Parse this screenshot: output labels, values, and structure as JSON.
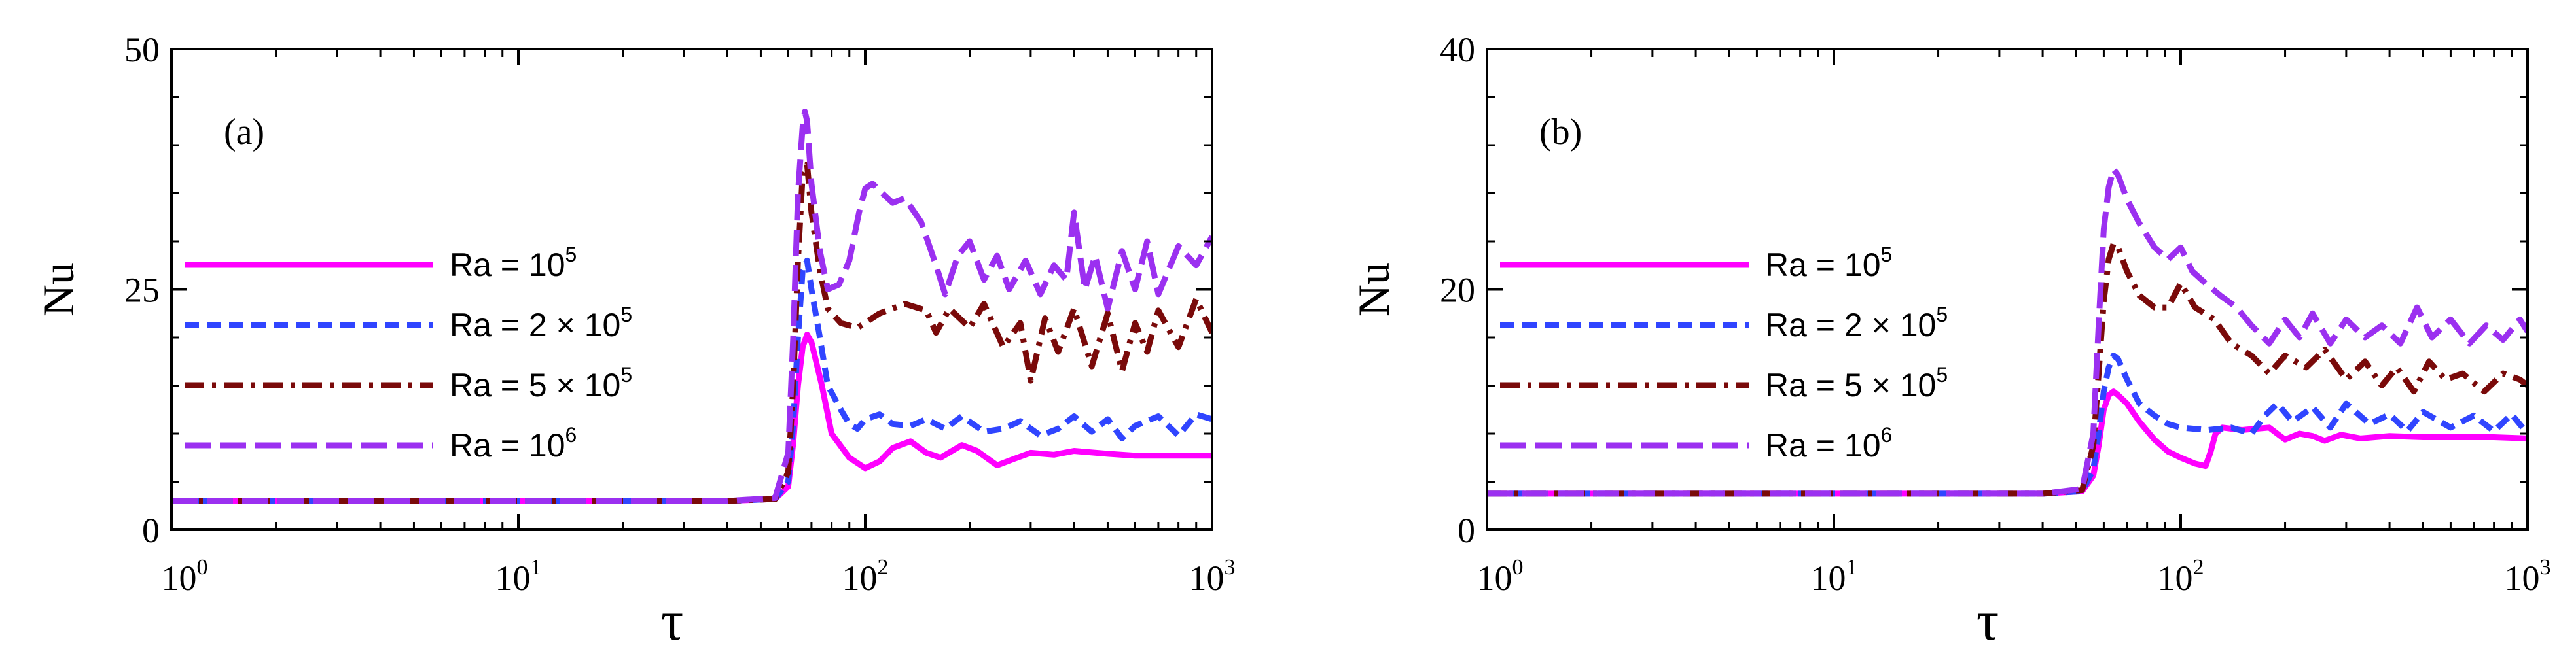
{
  "chart_data": [
    {
      "type": "line",
      "panel_label": "(a)",
      "xscale": "log",
      "xlim": [
        1,
        1000
      ],
      "ylim": [
        0,
        50
      ],
      "xlabel": "τ",
      "ylabel": "Nu",
      "yticks": [
        "0",
        "25",
        "50"
      ],
      "xticks": [
        {
          "base": "10",
          "exp": "0"
        },
        {
          "base": "10",
          "exp": "1"
        },
        {
          "base": "10",
          "exp": "2"
        },
        {
          "base": "10",
          "exp": "3"
        }
      ],
      "legend_position": "left",
      "series": [
        {
          "name": "Ra = 10^5",
          "label_base": "Ra = 10",
          "label_exp": "5",
          "color": "#ff00ff",
          "style": "solid",
          "x": [
            1,
            10,
            40,
            55,
            60,
            62,
            64,
            66,
            68,
            70,
            75,
            80,
            90,
            100,
            110,
            120,
            135,
            150,
            165,
            190,
            210,
            240,
            270,
            300,
            350,
            400,
            500,
            600,
            800,
            1000
          ],
          "y": [
            3,
            3,
            3,
            3.2,
            4.5,
            9,
            15,
            19,
            20.3,
            19.5,
            15,
            10,
            7.5,
            6.4,
            7.1,
            8.5,
            9.2,
            8.0,
            7.5,
            8.8,
            8.2,
            6.7,
            7.4,
            8.0,
            7.8,
            8.2,
            7.9,
            7.7,
            7.7,
            7.7
          ]
        },
        {
          "name": "Ra = 2 × 10^5",
          "label_base": "Ra = 2 × 10",
          "label_exp": "5",
          "color": "#3045ff",
          "style": "dash",
          "x": [
            1,
            10,
            40,
            55,
            60,
            62,
            64,
            66,
            68,
            70,
            74,
            78,
            85,
            90,
            95,
            100,
            110,
            120,
            135,
            150,
            170,
            190,
            220,
            250,
            280,
            320,
            360,
            400,
            450,
            500,
            550,
            600,
            700,
            800,
            900,
            1000
          ],
          "y": [
            3,
            3,
            3,
            3.2,
            5,
            11,
            20,
            27,
            28,
            25,
            20,
            15,
            12.5,
            11,
            10.5,
            11.5,
            12,
            11,
            10.8,
            11.5,
            10.5,
            11.8,
            10.2,
            10.5,
            11.3,
            9.8,
            10.5,
            11.8,
            10.2,
            11.5,
            9.5,
            10.8,
            11.8,
            9.8,
            12,
            11.5
          ]
        },
        {
          "name": "Ra = 5 × 10^5",
          "label_base": "Ra = 5 × 10",
          "label_exp": "5",
          "color": "#7a0a0a",
          "style": "dashdot",
          "x": [
            1,
            10,
            40,
            55,
            60,
            62,
            64,
            66,
            68,
            70,
            74,
            78,
            85,
            95,
            110,
            130,
            150,
            160,
            175,
            200,
            220,
            250,
            280,
            300,
            330,
            360,
            400,
            450,
            500,
            550,
            600,
            650,
            700,
            800,
            900,
            1000
          ],
          "y": [
            3,
            3,
            3,
            3.2,
            6,
            15,
            28,
            37,
            38,
            33,
            27,
            23,
            21.5,
            21,
            22.5,
            23.5,
            22.8,
            20.5,
            23,
            21,
            23.5,
            19,
            21.5,
            15.5,
            22,
            18.5,
            23,
            17,
            22.5,
            16.5,
            21.5,
            18.5,
            22.8,
            19,
            24,
            20.5
          ]
        },
        {
          "name": "Ra = 10^6",
          "label_base": "Ra = 10",
          "label_exp": "6",
          "color": "#9b30f0",
          "style": "longdash",
          "x": [
            1,
            10,
            40,
            55,
            60,
            62,
            64,
            66,
            67,
            68,
            70,
            74,
            78,
            84,
            90,
            96,
            100,
            105,
            112,
            120,
            130,
            145,
            160,
            170,
            185,
            200,
            220,
            240,
            260,
            290,
            320,
            350,
            380,
            400,
            430,
            460,
            500,
            550,
            600,
            650,
            700,
            800,
            900,
            1000
          ],
          "y": [
            3,
            3,
            3,
            3.3,
            8,
            20,
            35,
            42,
            43.5,
            42.5,
            36,
            29,
            25,
            25.5,
            28,
            33,
            35.5,
            36,
            35,
            34,
            34.5,
            32,
            27.5,
            24.5,
            28.5,
            30,
            26,
            28.5,
            25,
            28,
            24.5,
            27.5,
            26,
            33,
            25,
            28.5,
            23,
            29,
            25,
            30,
            24.5,
            29.5,
            27.5,
            30.5
          ]
        }
      ]
    },
    {
      "type": "line",
      "panel_label": "(b)",
      "xscale": "log",
      "xlim": [
        1,
        1000
      ],
      "ylim": [
        0,
        40
      ],
      "xlabel": "τ",
      "ylabel": "Nu",
      "yticks": [
        "0",
        "20",
        "40"
      ],
      "xticks": [
        {
          "base": "10",
          "exp": "0"
        },
        {
          "base": "10",
          "exp": "1"
        },
        {
          "base": "10",
          "exp": "2"
        },
        {
          "base": "10",
          "exp": "3"
        }
      ],
      "legend_position": "left",
      "series": [
        {
          "name": "Ra = 10^5",
          "label_base": "Ra = 10",
          "label_exp": "5",
          "color": "#ff00ff",
          "style": "solid",
          "x": [
            1,
            10,
            40,
            52,
            56,
            58,
            60,
            62,
            64,
            66,
            70,
            76,
            84,
            92,
            100,
            110,
            118,
            122,
            126,
            132,
            150,
            180,
            200,
            220,
            240,
            260,
            290,
            330,
            400,
            500,
            600,
            800,
            1000
          ],
          "y": [
            3,
            3,
            3,
            3.2,
            4.5,
            7,
            10,
            11.2,
            11.5,
            11.2,
            10.5,
            9,
            7.5,
            6.5,
            6.0,
            5.5,
            5.3,
            6.5,
            8.0,
            8.5,
            8.3,
            8.5,
            7.5,
            8.0,
            7.8,
            7.4,
            7.9,
            7.6,
            7.8,
            7.7,
            7.7,
            7.7,
            7.6
          ]
        },
        {
          "name": "Ra = 2 × 10^5",
          "label_base": "Ra = 2 × 10",
          "label_exp": "5",
          "color": "#3045ff",
          "style": "dash",
          "x": [
            1,
            10,
            40,
            52,
            56,
            58,
            60,
            62,
            64,
            66,
            70,
            76,
            84,
            92,
            100,
            120,
            140,
            160,
            175,
            190,
            210,
            240,
            270,
            300,
            350,
            400,
            450,
            500,
            600,
            700,
            800,
            900,
            1000
          ],
          "y": [
            3,
            3,
            3,
            3.2,
            5,
            8,
            11.5,
            13.5,
            14.5,
            14.2,
            12.5,
            10.5,
            9.5,
            8.8,
            8.5,
            8.3,
            8.5,
            8.0,
            9.5,
            10.5,
            9.0,
            10.2,
            8.5,
            10.5,
            8.8,
            9.6,
            8.2,
            9.8,
            8.5,
            9.5,
            8.2,
            9.6,
            8.0
          ]
        },
        {
          "name": "Ra = 5 × 10^5",
          "label_base": "Ra = 5 × 10",
          "label_exp": "5",
          "color": "#7a0a0a",
          "style": "dashdot",
          "x": [
            1,
            10,
            40,
            52,
            56,
            58,
            60,
            62,
            64,
            66,
            70,
            76,
            84,
            92,
            100,
            110,
            125,
            140,
            160,
            180,
            200,
            230,
            260,
            300,
            340,
            380,
            420,
            470,
            520,
            580,
            650,
            750,
            850,
            950,
            1000
          ],
          "y": [
            3,
            3,
            3,
            3.3,
            7,
            13,
            19,
            22.5,
            23.8,
            23.5,
            21.5,
            19.5,
            18.5,
            18.5,
            20.5,
            18.5,
            17.5,
            15.5,
            14.5,
            13.0,
            14.5,
            13.5,
            15.0,
            12.5,
            14.0,
            12.0,
            13.5,
            11.5,
            14.0,
            12.5,
            13.0,
            11.5,
            13.0,
            12.5,
            12.0
          ]
        },
        {
          "name": "Ra = 10^6",
          "label_base": "Ra = 10",
          "label_exp": "6",
          "color": "#9b30f0",
          "style": "longdash",
          "x": [
            1,
            10,
            40,
            52,
            56,
            58,
            60,
            62,
            64,
            66,
            70,
            76,
            84,
            92,
            100,
            108,
            118,
            130,
            145,
            160,
            180,
            200,
            220,
            240,
            270,
            300,
            340,
            380,
            430,
            480,
            530,
            600,
            680,
            760,
            850,
            950,
            1000
          ],
          "y": [
            3,
            3,
            3,
            3.4,
            8,
            17,
            25,
            28.5,
            30,
            29.5,
            27.5,
            25.5,
            23.5,
            22.5,
            23.5,
            21.5,
            20.5,
            19.5,
            18.5,
            17.0,
            15.5,
            17.5,
            16.0,
            18.0,
            15.5,
            17.5,
            16.0,
            17.0,
            15.5,
            18.5,
            16.0,
            17.5,
            15.5,
            17.0,
            15.8,
            17.5,
            16.5
          ]
        }
      ]
    }
  ]
}
